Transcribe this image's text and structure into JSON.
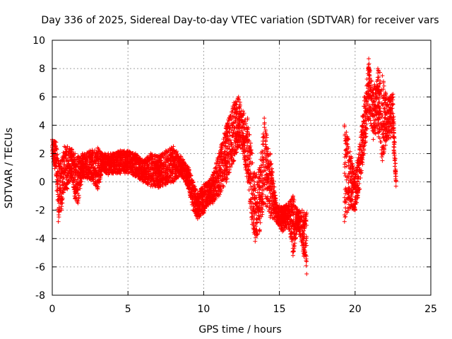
{
  "chart_data": {
    "type": "scatter",
    "title": "Day 336 of 2025, Sidereal Day-to-day VTEC variation (SDTVAR) for receiver vars",
    "xlabel": "GPS time / hours",
    "ylabel": "SDTVAR / TECUs",
    "xlim": [
      0,
      25
    ],
    "ylim": [
      -8,
      10
    ],
    "xticks": [
      0,
      5,
      10,
      15,
      20,
      25
    ],
    "yticks": [
      -8,
      -6,
      -4,
      -2,
      0,
      2,
      4,
      6,
      8,
      10
    ],
    "xtick_labels": [
      "0",
      "5",
      "10",
      "15",
      "20",
      "25"
    ],
    "ytick_labels": [
      "-8",
      "-6",
      "-4",
      "-2",
      "0",
      "2",
      "4",
      "6",
      "8",
      "10"
    ],
    "grid": true,
    "marker": "+",
    "series_color": "#ff0000",
    "series": [
      {
        "name": "SDTVAR",
        "band_note": "envelope of plotted points per time: hour, low, high",
        "envelope": [
          [
            0.0,
            1.8,
            3.0
          ],
          [
            0.25,
            0.5,
            2.8
          ],
          [
            0.4,
            -2.8,
            1.5
          ],
          [
            0.6,
            -2.0,
            1.5
          ],
          [
            0.8,
            -0.5,
            2.5
          ],
          [
            1.0,
            -0.5,
            2.5
          ],
          [
            1.3,
            0.3,
            2.3
          ],
          [
            1.5,
            -1.2,
            2.0
          ],
          [
            1.7,
            -1.5,
            1.8
          ],
          [
            2.0,
            0.3,
            2.0
          ],
          [
            2.5,
            0.2,
            2.2
          ],
          [
            3.0,
            -0.5,
            2.4
          ],
          [
            3.3,
            0.8,
            2.0
          ],
          [
            3.7,
            0.5,
            2.0
          ],
          [
            4.0,
            0.6,
            2.0
          ],
          [
            4.5,
            0.6,
            2.2
          ],
          [
            5.0,
            0.6,
            2.2
          ],
          [
            5.5,
            0.4,
            2.0
          ],
          [
            6.0,
            0.0,
            1.5
          ],
          [
            6.5,
            -0.3,
            2.0
          ],
          [
            7.0,
            -0.4,
            1.8
          ],
          [
            7.5,
            -0.2,
            2.2
          ],
          [
            8.0,
            0.0,
            2.5
          ],
          [
            8.5,
            0.5,
            1.8
          ],
          [
            9.0,
            -0.5,
            1.0
          ],
          [
            9.3,
            -2.0,
            0.0
          ],
          [
            9.6,
            -2.6,
            -0.8
          ],
          [
            10.0,
            -2.2,
            -0.2
          ],
          [
            10.3,
            -1.6,
            0.0
          ],
          [
            10.6,
            -1.5,
            0.5
          ],
          [
            11.0,
            -1.0,
            2.0
          ],
          [
            11.5,
            0.0,
            4.0
          ],
          [
            12.0,
            1.5,
            5.6
          ],
          [
            12.3,
            2.5,
            6.0
          ],
          [
            12.6,
            2.0,
            5.0
          ],
          [
            12.9,
            0.0,
            4.5
          ],
          [
            13.2,
            -3.0,
            2.0
          ],
          [
            13.4,
            -4.2,
            0.5
          ],
          [
            13.7,
            -3.5,
            1.0
          ],
          [
            14.0,
            -1.5,
            4.5
          ],
          [
            14.4,
            -2.5,
            2.0
          ],
          [
            14.8,
            -2.8,
            -1.5
          ],
          [
            15.2,
            -3.5,
            -1.8
          ],
          [
            15.6,
            -3.2,
            -1.5
          ],
          [
            15.9,
            -5.2,
            -1.0
          ],
          [
            16.2,
            -3.2,
            -2.0
          ],
          [
            16.5,
            -4.5,
            -2.0
          ],
          [
            16.8,
            -6.5,
            -2.2
          ],
          [
            19.3,
            -2.8,
            4.0
          ],
          [
            19.55,
            -2.0,
            3.0
          ],
          [
            20.0,
            -2.0,
            0.5
          ],
          [
            20.3,
            -0.5,
            2.5
          ],
          [
            20.6,
            2.0,
            6.0
          ],
          [
            20.9,
            4.5,
            8.7
          ],
          [
            21.2,
            3.0,
            6.5
          ],
          [
            21.5,
            3.5,
            8.0
          ],
          [
            21.8,
            1.5,
            7.5
          ],
          [
            22.1,
            3.0,
            6.0
          ],
          [
            22.5,
            3.2,
            6.2
          ],
          [
            22.7,
            -0.3,
            0.4
          ]
        ],
        "gaps": [
          [
            17.0,
            19.2
          ],
          [
            22.75,
            25.0
          ]
        ]
      }
    ]
  }
}
